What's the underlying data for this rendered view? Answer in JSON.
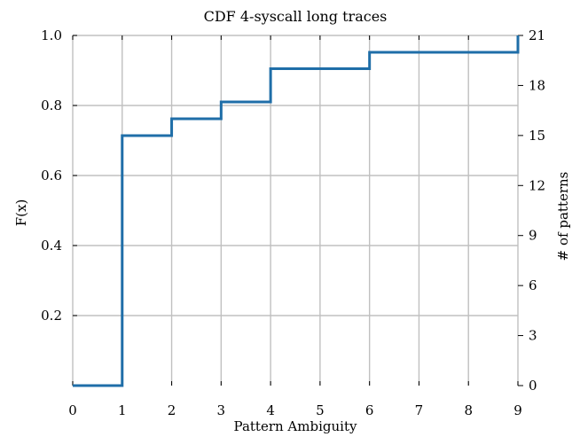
{
  "chart_data": {
    "type": "line",
    "title": "CDF 4-syscall long traces",
    "xlabel": "Pattern Ambiguity",
    "ylabel": "F(x)",
    "y2label": "# of patterns",
    "xlim": [
      0,
      9
    ],
    "ylim": [
      0,
      1.0
    ],
    "y2lim": [
      0,
      21
    ],
    "x_ticks": [
      0,
      1,
      2,
      3,
      4,
      5,
      6,
      7,
      8,
      9
    ],
    "x_tick_labels": [
      "0",
      "1",
      "2",
      "3",
      "4",
      "5",
      "6",
      "7",
      "8",
      "9"
    ],
    "y_ticks": [
      0.2,
      0.4,
      0.6,
      0.8,
      1.0
    ],
    "y_tick_labels": [
      "0.2",
      "0.4",
      "0.6",
      "0.8",
      "1.0"
    ],
    "y2_ticks": [
      0,
      3,
      6,
      9,
      12,
      15,
      18,
      21
    ],
    "y2_tick_labels": [
      "0",
      "3",
      "6",
      "9",
      "12",
      "15",
      "18",
      "21"
    ],
    "grid": true,
    "line_style": "step-post",
    "series": [
      {
        "color": "#1f6ea8",
        "x": [
          0,
          1,
          2,
          3,
          4,
          6,
          9
        ],
        "y": [
          0.0,
          0.714,
          0.762,
          0.81,
          0.905,
          0.952,
          1.0
        ]
      }
    ]
  }
}
